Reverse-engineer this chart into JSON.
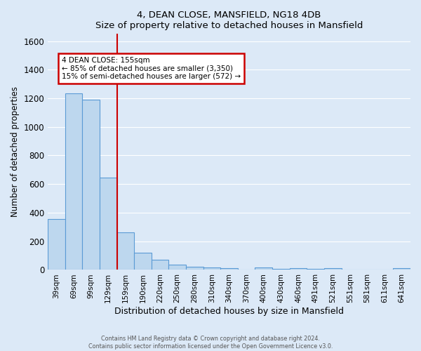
{
  "title": "4, DEAN CLOSE, MANSFIELD, NG18 4DB",
  "subtitle": "Size of property relative to detached houses in Mansfield",
  "xlabel": "Distribution of detached houses by size in Mansfield",
  "ylabel": "Number of detached properties",
  "bar_color": "#bdd7ee",
  "bar_edge_color": "#5b9bd5",
  "vline_color": "#cc0000",
  "annotation_box_color": "#ffffff",
  "annotation_box_edge": "#cc0000",
  "ylim": [
    0,
    1650
  ],
  "yticks": [
    0,
    200,
    400,
    600,
    800,
    1000,
    1200,
    1400,
    1600
  ],
  "footer1": "Contains HM Land Registry data © Crown copyright and database right 2024.",
  "footer2": "Contains public sector information licensed under the Open Government Licence v3.0.",
  "bg_color": "#dce9f7",
  "plot_bg_color": "#dce9f7",
  "grid_color": "#ffffff",
  "all_bar_labels": [
    "39sqm",
    "69sqm",
    "99sqm",
    "129sqm",
    "159sqm",
    "190sqm",
    "220sqm",
    "250sqm",
    "280sqm",
    "310sqm",
    "340sqm",
    "370sqm",
    "400sqm",
    "430sqm",
    "460sqm",
    "491sqm",
    "521sqm",
    "551sqm",
    "581sqm",
    "611sqm",
    "641sqm"
  ],
  "all_bar_values": [
    355,
    1235,
    1190,
    645,
    260,
    120,
    70,
    35,
    20,
    15,
    10,
    0,
    15,
    5,
    10,
    5,
    10,
    0,
    0,
    0,
    10
  ],
  "vline_index": 3.5,
  "ann_text_line0": "4 DEAN CLOSE: 155sqm",
  "ann_text_line1": "← 85% of detached houses are smaller (3,350)",
  "ann_text_line2": "15% of semi-detached houses are larger (572) →"
}
